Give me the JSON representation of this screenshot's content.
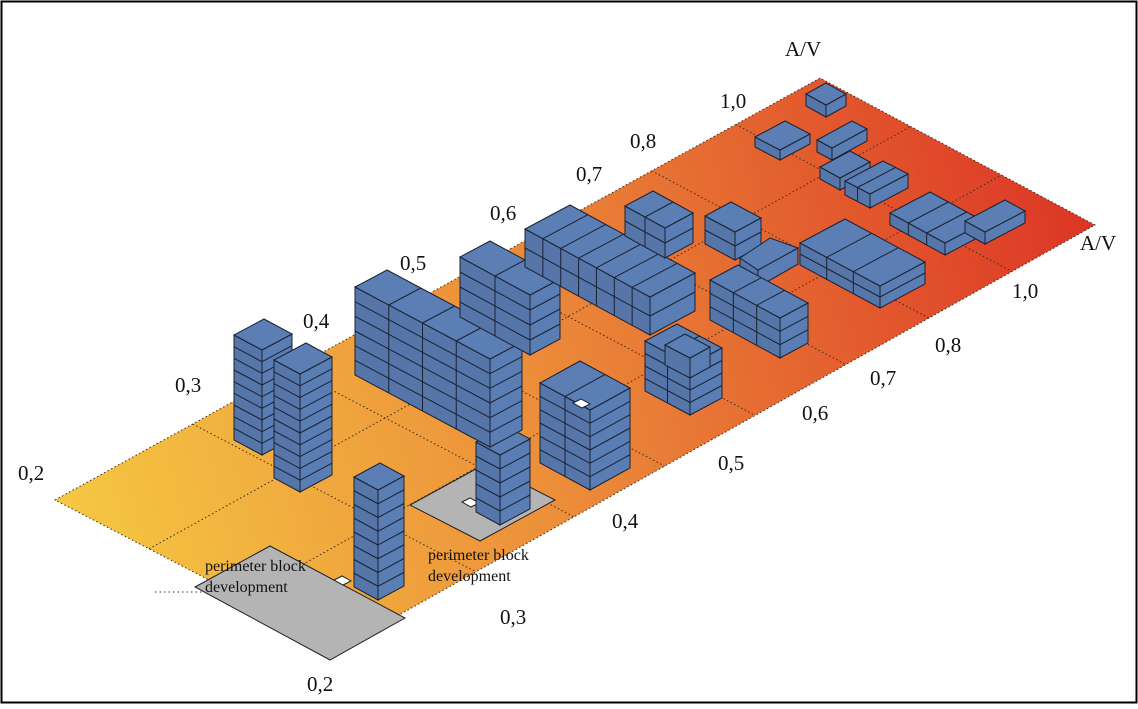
{
  "axis_back_title": "A/V",
  "axis_right_title": "A/V",
  "back_axis_ticks": [
    "0,2",
    "0,3",
    "0,4",
    "0,5",
    "0,6",
    "0,7",
    "0,8",
    "1,0"
  ],
  "right_axis_ticks": [
    "0,2",
    "0,3",
    "0,4",
    "0,5",
    "0,6",
    "0,7",
    "0,8",
    "1,0"
  ],
  "annotations": [
    {
      "line1": "perimeter block",
      "line2": "development"
    },
    {
      "line1": "perimeter block",
      "line2": "development"
    }
  ],
  "colors": {
    "floor_start": "#f5c842",
    "floor_end": "#dc3525",
    "building": "#5b7eb4",
    "building_edge": "#1a2233",
    "courtyard": "#b4b4b4"
  }
}
